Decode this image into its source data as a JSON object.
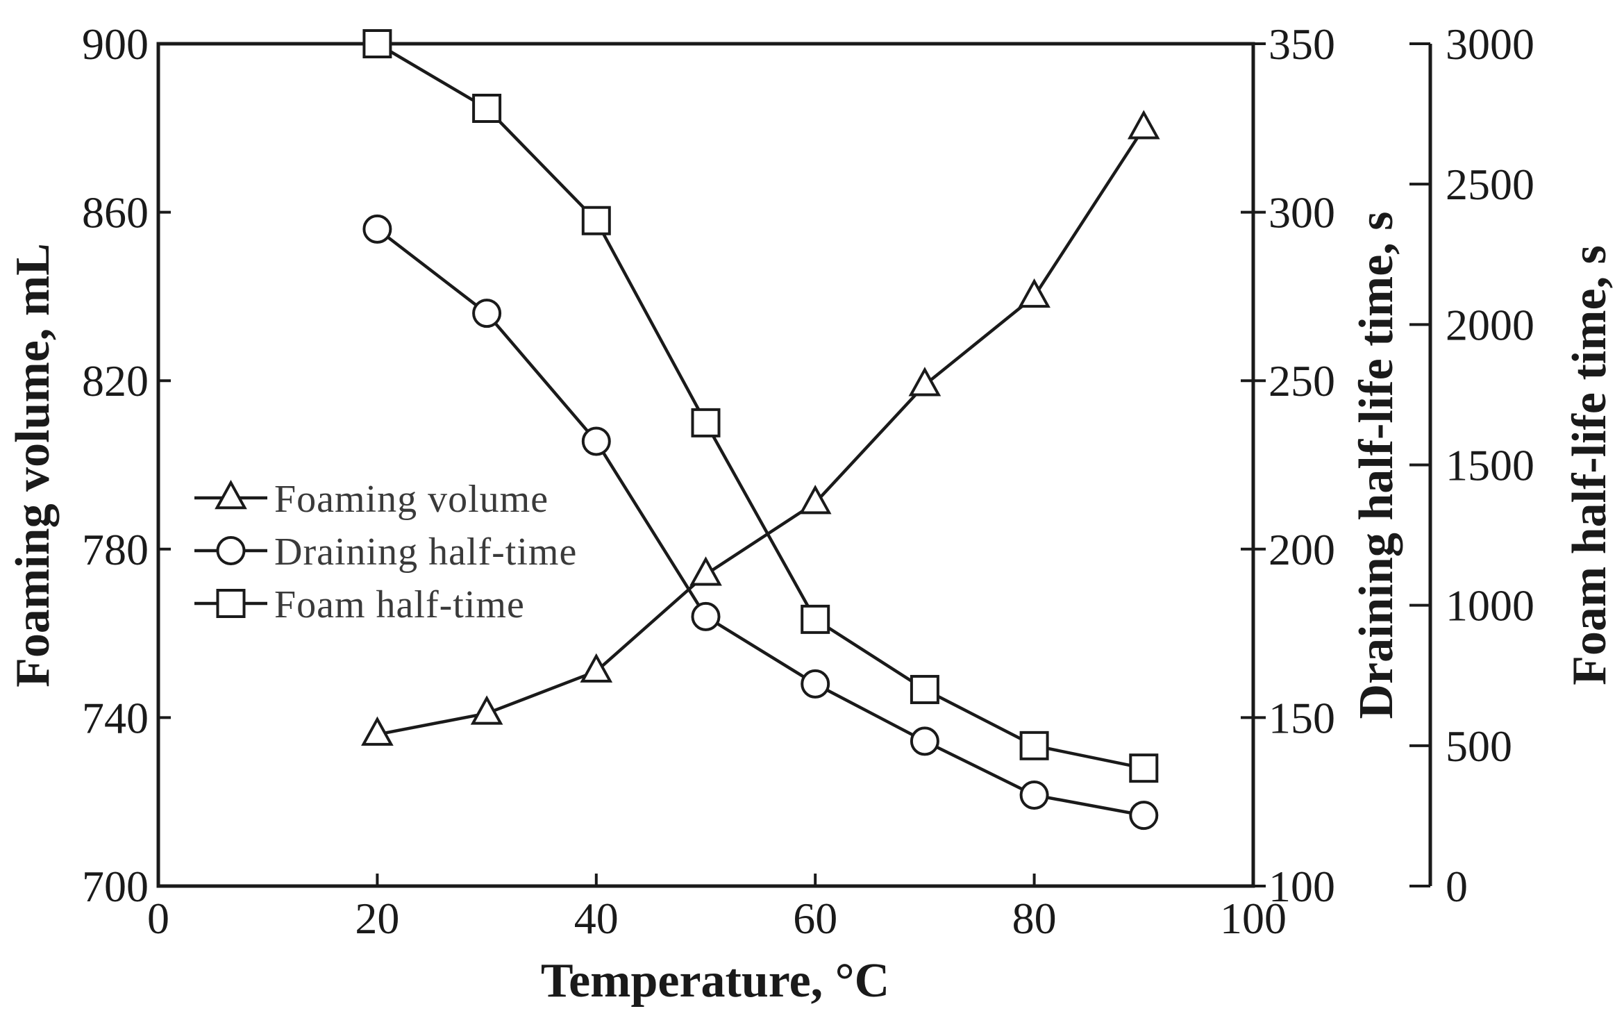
{
  "chart_data": {
    "type": "line",
    "xlabel": "Temperature, °C",
    "xlim": [
      0,
      100
    ],
    "xticks": [
      0,
      20,
      40,
      60,
      80,
      100
    ],
    "x": [
      20,
      30,
      40,
      50,
      60,
      70,
      80,
      90
    ],
    "axes": {
      "left": {
        "label": "Foaming volume, mL",
        "lim": [
          700,
          900
        ],
        "ticks": [
          700,
          740,
          780,
          820,
          860,
          900
        ]
      },
      "right1": {
        "label": "Draining half-life time, s",
        "lim": [
          100,
          350
        ],
        "ticks": [
          100,
          150,
          200,
          250,
          300,
          350
        ]
      },
      "right2": {
        "label": "Foam half-life time, s",
        "lim": [
          0,
          3000
        ],
        "ticks": [
          0,
          500,
          1000,
          1500,
          2000,
          2500,
          3000
        ]
      }
    },
    "series": [
      {
        "name": "Foaming volume",
        "marker": "triangle",
        "axis": "left",
        "values": [
          736,
          741,
          751,
          774,
          791,
          819,
          840,
          880
        ]
      },
      {
        "name": "Draining half-time",
        "marker": "circle",
        "axis": "right1",
        "values": [
          295,
          270,
          232,
          180,
          160,
          143,
          127,
          121
        ]
      },
      {
        "name": "Foam half-time",
        "marker": "square",
        "axis": "right2",
        "values": [
          3000,
          2770,
          2370,
          1650,
          950,
          700,
          500,
          420
        ]
      }
    ],
    "grid": false,
    "legend_position": "center-left"
  }
}
